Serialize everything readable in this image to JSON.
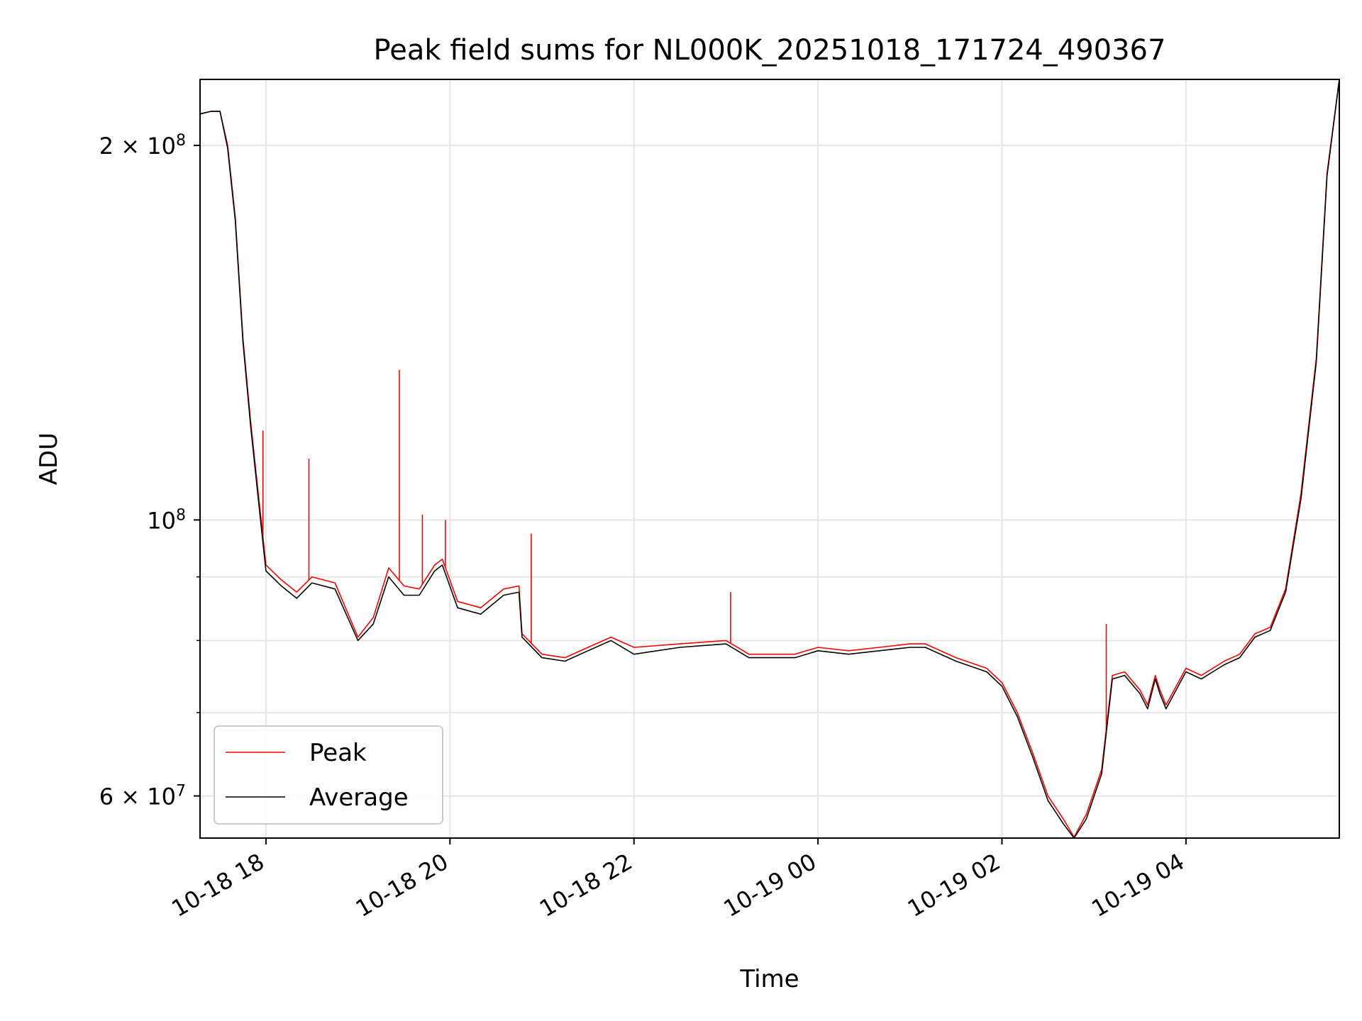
{
  "chart_data": {
    "type": "line",
    "title": "Peak field sums for NL000K_20251018_171724_490367",
    "xlabel": "Time",
    "ylabel": "ADU",
    "x_ticks": [
      "10-18 18",
      "10-18 20",
      "10-18 22",
      "10-19 00",
      "10-19 02",
      "10-19 04"
    ],
    "y_ticks": [
      {
        "value": 60000000,
        "mantissa": "6",
        "sep": " × ",
        "base": "10",
        "exp": "7"
      },
      {
        "value": 100000000,
        "mantissa": "",
        "sep": "",
        "base": "10",
        "exp": "8"
      },
      {
        "value": 200000000,
        "mantissa": "2",
        "sep": " × ",
        "base": "10",
        "exp": "8"
      }
    ],
    "y_scale": "log",
    "xlim": [
      "2025-10-18 17:17",
      "2025-10-19 05:40"
    ],
    "ylim": [
      55500000,
      226000000
    ],
    "grid": true,
    "legend_position": "lower-left",
    "colors": {
      "peak": "#ff0000",
      "average": "#000000",
      "grid": "#e6e6e6"
    },
    "series": [
      {
        "name": "Peak",
        "x": [
          "2025-10-18 17:17",
          "2025-10-18 17:24",
          "2025-10-18 17:30",
          "2025-10-18 17:35",
          "2025-10-18 17:40",
          "2025-10-18 17:45",
          "2025-10-18 17:50",
          "2025-10-18 17:55",
          "2025-10-18 18:00",
          "2025-10-18 18:10",
          "2025-10-18 18:20",
          "2025-10-18 18:30",
          "2025-10-18 18:45",
          "2025-10-18 19:00",
          "2025-10-18 19:10",
          "2025-10-18 19:20",
          "2025-10-18 19:30",
          "2025-10-18 19:40",
          "2025-10-18 19:50",
          "2025-10-18 19:55",
          "2025-10-18 20:05",
          "2025-10-18 20:20",
          "2025-10-18 20:35",
          "2025-10-18 20:45",
          "2025-10-18 20:47",
          "2025-10-18 21:00",
          "2025-10-18 21:15",
          "2025-10-18 21:30",
          "2025-10-18 21:45",
          "2025-10-18 22:00",
          "2025-10-18 22:30",
          "2025-10-18 23:00",
          "2025-10-18 23:15",
          "2025-10-18 23:30",
          "2025-10-18 23:45",
          "2025-10-19 00:00",
          "2025-10-19 00:20",
          "2025-10-19 00:40",
          "2025-10-19 01:00",
          "2025-10-19 01:10",
          "2025-10-19 01:30",
          "2025-10-19 01:50",
          "2025-10-19 02:00",
          "2025-10-19 02:10",
          "2025-10-19 02:20",
          "2025-10-19 02:30",
          "2025-10-19 02:40",
          "2025-10-19 02:47",
          "2025-10-19 02:55",
          "2025-10-19 03:05",
          "2025-10-19 03:12",
          "2025-10-19 03:20",
          "2025-10-19 03:30",
          "2025-10-19 03:35",
          "2025-10-19 03:40",
          "2025-10-19 03:43",
          "2025-10-19 03:47",
          "2025-10-19 04:00",
          "2025-10-19 04:10",
          "2025-10-19 04:25",
          "2025-10-19 04:35",
          "2025-10-19 04:45",
          "2025-10-19 04:55",
          "2025-10-19 05:05",
          "2025-10-19 05:15",
          "2025-10-19 05:25",
          "2025-10-19 05:32",
          "2025-10-19 05:40"
        ],
        "values": [
          212000000,
          213000000,
          213000000,
          200000000,
          175000000,
          140000000,
          120000000,
          105000000,
          92000000,
          89500000,
          87500000,
          90000000,
          89000000,
          80500000,
          83500000,
          91500000,
          88500000,
          88000000,
          92000000,
          93000000,
          86000000,
          85000000,
          88000000,
          88500000,
          81000000,
          78000000,
          77500000,
          79000000,
          80500000,
          79000000,
          79500000,
          80000000,
          78000000,
          78000000,
          78000000,
          79000000,
          78500000,
          79000000,
          79500000,
          79500000,
          77500000,
          76000000,
          74000000,
          70000000,
          65000000,
          60000000,
          57500000,
          55600000,
          58000000,
          63000000,
          75000000,
          75500000,
          73000000,
          71000000,
          75000000,
          73000000,
          71000000,
          76000000,
          75000000,
          77000000,
          78000000,
          81000000,
          82000000,
          88000000,
          105000000,
          135000000,
          190000000,
          226000000
        ],
        "spikes": [
          {
            "x": "2025-10-18 17:58",
            "value": 118000000
          },
          {
            "x": "2025-10-18 18:28",
            "value": 112000000
          },
          {
            "x": "2025-10-18 19:27",
            "value": 132000000
          },
          {
            "x": "2025-10-18 19:42",
            "value": 101000000
          },
          {
            "x": "2025-10-18 19:57",
            "value": 100000000
          },
          {
            "x": "2025-10-18 20:53",
            "value": 97500000
          },
          {
            "x": "2025-10-18 23:03",
            "value": 87500000
          },
          {
            "x": "2025-10-19 03:08",
            "value": 82500000
          }
        ]
      },
      {
        "name": "Average",
        "x": [
          "2025-10-18 17:17",
          "2025-10-18 17:24",
          "2025-10-18 17:30",
          "2025-10-18 17:35",
          "2025-10-18 17:40",
          "2025-10-18 17:45",
          "2025-10-18 17:50",
          "2025-10-18 17:55",
          "2025-10-18 18:00",
          "2025-10-18 18:10",
          "2025-10-18 18:20",
          "2025-10-18 18:30",
          "2025-10-18 18:45",
          "2025-10-18 19:00",
          "2025-10-18 19:10",
          "2025-10-18 19:20",
          "2025-10-18 19:30",
          "2025-10-18 19:40",
          "2025-10-18 19:50",
          "2025-10-18 19:55",
          "2025-10-18 20:05",
          "2025-10-18 20:20",
          "2025-10-18 20:35",
          "2025-10-18 20:45",
          "2025-10-18 20:47",
          "2025-10-18 21:00",
          "2025-10-18 21:15",
          "2025-10-18 21:30",
          "2025-10-18 21:45",
          "2025-10-18 22:00",
          "2025-10-18 22:30",
          "2025-10-18 23:00",
          "2025-10-18 23:15",
          "2025-10-18 23:30",
          "2025-10-18 23:45",
          "2025-10-19 00:00",
          "2025-10-19 00:20",
          "2025-10-19 00:40",
          "2025-10-19 01:00",
          "2025-10-19 01:10",
          "2025-10-19 01:30",
          "2025-10-19 01:50",
          "2025-10-19 02:00",
          "2025-10-19 02:10",
          "2025-10-19 02:20",
          "2025-10-19 02:30",
          "2025-10-19 02:40",
          "2025-10-19 02:47",
          "2025-10-19 02:55",
          "2025-10-19 03:05",
          "2025-10-19 03:12",
          "2025-10-19 03:20",
          "2025-10-19 03:30",
          "2025-10-19 03:35",
          "2025-10-19 03:40",
          "2025-10-19 03:43",
          "2025-10-19 03:47",
          "2025-10-19 04:00",
          "2025-10-19 04:10",
          "2025-10-19 04:25",
          "2025-10-19 04:35",
          "2025-10-19 04:45",
          "2025-10-19 04:55",
          "2025-10-19 05:05",
          "2025-10-19 05:15",
          "2025-10-19 05:25",
          "2025-10-19 05:32",
          "2025-10-19 05:40"
        ],
        "values": [
          212000000,
          213000000,
          213000000,
          199000000,
          174000000,
          139000000,
          119000000,
          104000000,
          91000000,
          88500000,
          86500000,
          89000000,
          88000000,
          80000000,
          82500000,
          90000000,
          87000000,
          87000000,
          91000000,
          92000000,
          85000000,
          84000000,
          87000000,
          87500000,
          80500000,
          77500000,
          77000000,
          78500000,
          80000000,
          78000000,
          79000000,
          79500000,
          77500000,
          77500000,
          77500000,
          78500000,
          78000000,
          78500000,
          79000000,
          79000000,
          77000000,
          75500000,
          73500000,
          69500000,
          64500000,
          59500000,
          57000000,
          55500000,
          57500000,
          62500000,
          74500000,
          75000000,
          72500000,
          70500000,
          74500000,
          72500000,
          70500000,
          75500000,
          74500000,
          76500000,
          77500000,
          80500000,
          81500000,
          87500000,
          104000000,
          134000000,
          189000000,
          226000000
        ]
      }
    ]
  }
}
